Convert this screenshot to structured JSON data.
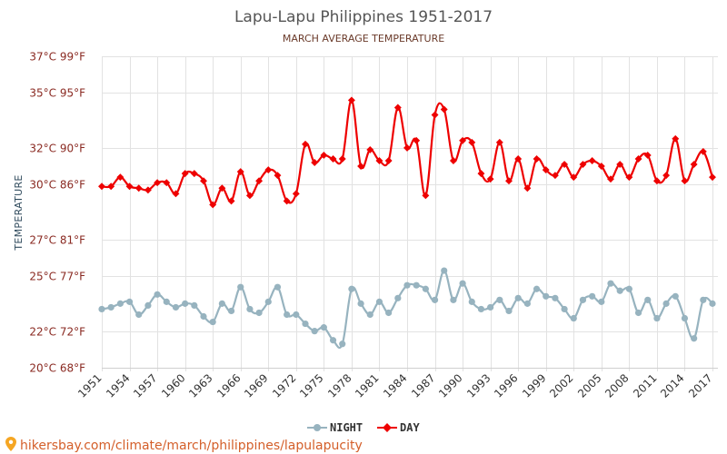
{
  "chart_data": {
    "type": "line",
    "title": "Lapu-Lapu Philippines 1951-2017",
    "subtitle": "MARCH AVERAGE TEMPERATURE",
    "ylabel": "TEMPERATURE",
    "ylim": [
      20,
      37
    ],
    "y_ticks": [
      {
        "value": 37,
        "label": "37°C 99°F"
      },
      {
        "value": 35,
        "label": "35°C 95°F"
      },
      {
        "value": 32,
        "label": "32°C 90°F"
      },
      {
        "value": 30,
        "label": "30°C 86°F"
      },
      {
        "value": 27,
        "label": "27°C 81°F"
      },
      {
        "value": 25,
        "label": "25°C 77°F"
      },
      {
        "value": 22,
        "label": "22°C 72°F"
      },
      {
        "value": 20,
        "label": "20°C 68°F"
      }
    ],
    "x_ticks": [
      "1951",
      "1954",
      "1957",
      "1960",
      "1963",
      "1966",
      "1969",
      "1972",
      "1975",
      "1978",
      "1981",
      "1984",
      "1987",
      "1990",
      "1993",
      "1996",
      "1999",
      "2002",
      "2005",
      "2008",
      "2011",
      "2014",
      "2017"
    ],
    "x": [
      1951,
      1952,
      1953,
      1954,
      1955,
      1956,
      1957,
      1958,
      1959,
      1960,
      1961,
      1962,
      1963,
      1964,
      1965,
      1966,
      1967,
      1968,
      1969,
      1970,
      1971,
      1972,
      1973,
      1974,
      1975,
      1976,
      1977,
      1978,
      1979,
      1980,
      1981,
      1982,
      1983,
      1984,
      1985,
      1986,
      1987,
      1988,
      1989,
      1990,
      1991,
      1992,
      1993,
      1994,
      1995,
      1996,
      1997,
      1998,
      1999,
      2000,
      2001,
      2002,
      2003,
      2004,
      2005,
      2006,
      2007,
      2008,
      2009,
      2010,
      2011,
      2012,
      2013,
      2014,
      2015,
      2016,
      2017
    ],
    "series": [
      {
        "name": "NIGHT",
        "color": "#97b3bf",
        "values": [
          23.2,
          23.3,
          23.5,
          23.6,
          22.9,
          23.4,
          24.0,
          23.6,
          23.3,
          23.5,
          23.4,
          22.8,
          22.5,
          23.5,
          23.1,
          24.4,
          23.2,
          23.0,
          23.6,
          24.4,
          22.9,
          22.9,
          22.4,
          22.0,
          22.2,
          21.5,
          21.3,
          24.3,
          23.5,
          22.9,
          23.6,
          23.0,
          23.8,
          24.5,
          24.5,
          24.3,
          23.7,
          25.3,
          23.7,
          24.6,
          23.6,
          23.2,
          23.3,
          23.7,
          23.1,
          23.8,
          23.5,
          24.3,
          23.9,
          23.8,
          23.2,
          22.7,
          23.7,
          23.9,
          23.6,
          24.6,
          24.2,
          24.3,
          23.0,
          23.7,
          22.7,
          23.5,
          23.9,
          22.7,
          21.6,
          23.7,
          23.5
        ]
      },
      {
        "name": "DAY",
        "color": "#ee0000",
        "values": [
          29.9,
          29.9,
          30.4,
          29.9,
          29.8,
          29.7,
          30.1,
          30.1,
          29.5,
          30.6,
          30.6,
          30.2,
          28.9,
          29.8,
          29.1,
          30.7,
          29.4,
          30.2,
          30.8,
          30.5,
          29.1,
          29.5,
          32.2,
          31.2,
          31.6,
          31.4,
          31.4,
          34.6,
          31.0,
          31.9,
          31.3,
          31.3,
          34.2,
          32.0,
          32.4,
          29.4,
          33.8,
          34.1,
          31.3,
          32.4,
          32.3,
          30.6,
          30.3,
          32.3,
          30.2,
          31.4,
          29.8,
          31.4,
          30.8,
          30.5,
          31.1,
          30.4,
          31.1,
          31.3,
          31.0,
          30.3,
          31.1,
          30.4,
          31.4,
          31.6,
          30.2,
          30.5,
          32.5,
          30.2,
          31.1,
          31.8,
          30.4
        ]
      }
    ],
    "legend": {
      "placement": "bottom-center"
    },
    "grid": true
  },
  "footer": {
    "source_text": "hikersbay.com/climate/march/philippines/lapulapucity",
    "pin_icon": "map-pin-icon",
    "pin_color": "#f5a623"
  }
}
